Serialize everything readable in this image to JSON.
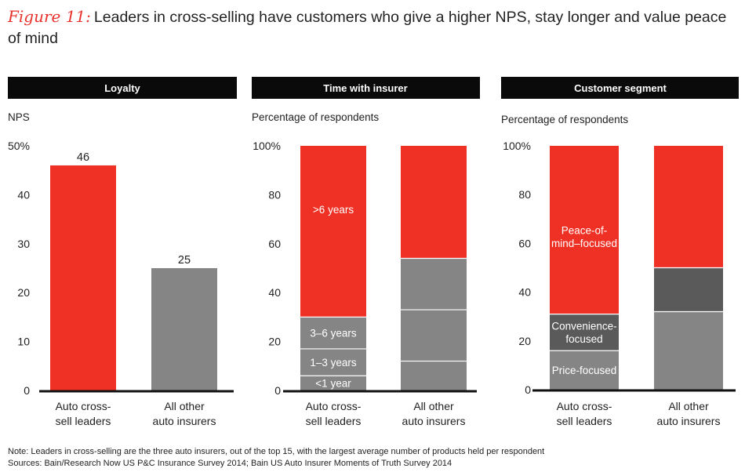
{
  "title": {
    "figure_label": "Figure 11:",
    "text": "Leaders in cross-selling have customers who give a higher NPS, stay longer and value peace of mind"
  },
  "colors": {
    "red": "#ee3124",
    "gray": "#858585",
    "dark_gray": "#5a5a5a",
    "header_bg": "#0a0a0a"
  },
  "chart_data": [
    {
      "type": "bar",
      "panel_title": "Loyalty",
      "ylabel": "NPS",
      "ylim": [
        0,
        50
      ],
      "yticks": [
        "0",
        "10",
        "20",
        "30",
        "40",
        "50%"
      ],
      "categories": [
        "Auto cross-sell leaders",
        "All other auto insurers"
      ],
      "category_lines": [
        [
          "Auto cross-",
          "sell leaders"
        ],
        [
          "All other",
          "auto insurers"
        ]
      ],
      "values": [
        46,
        25
      ],
      "data_labels": [
        "46",
        "25"
      ],
      "bar_colors": [
        "#ee3124",
        "#858585"
      ]
    },
    {
      "type": "bar",
      "stacked": true,
      "panel_title": "Time with insurer",
      "ylabel": "Percentage of respondents",
      "ylim": [
        0,
        100
      ],
      "yticks": [
        "0",
        "20",
        "40",
        "60",
        "80",
        "100%"
      ],
      "categories": [
        "Auto cross-sell leaders",
        "All other auto insurers"
      ],
      "category_lines": [
        [
          "Auto cross-",
          "sell leaders"
        ],
        [
          "All other",
          "auto insurers"
        ]
      ],
      "series": [
        {
          "name": "<1 year",
          "values": [
            6,
            12
          ],
          "color": "#858585"
        },
        {
          "name": "1–3 years",
          "values": [
            11,
            21
          ],
          "color": "#858585"
        },
        {
          "name": "3–6 years",
          "values": [
            13,
            21
          ],
          "color": "#858585"
        },
        {
          "name": ">6 years",
          "values": [
            70,
            46
          ],
          "color": "#ee3124"
        }
      ]
    },
    {
      "type": "bar",
      "stacked": true,
      "panel_title": "Customer segment",
      "ylabel": "Percentage of respondents",
      "ylim": [
        0,
        100
      ],
      "yticks": [
        "0",
        "20",
        "40",
        "60",
        "80",
        "100%"
      ],
      "categories": [
        "Auto cross-sell leaders",
        "All other auto insurers"
      ],
      "category_lines": [
        [
          "Auto cross-",
          "sell leaders"
        ],
        [
          "All other",
          "auto insurers"
        ]
      ],
      "series": [
        {
          "name": "Price-focused",
          "label_lines": [
            "Price-focused"
          ],
          "values": [
            16,
            32
          ],
          "color": "#858585"
        },
        {
          "name": "Convenience-focused",
          "label_lines": [
            "Convenience-",
            "focused"
          ],
          "values": [
            15,
            18
          ],
          "color": "#5a5a5a"
        },
        {
          "name": "Peace-of-mind–focused",
          "label_lines": [
            "Peace-of-",
            "mind–focused"
          ],
          "values": [
            69,
            50
          ],
          "color": "#ee3124"
        }
      ]
    }
  ],
  "notes": {
    "note": "Note: Leaders in cross-selling are the three auto insurers, out of the top 15, with the largest average number of products held per respondent",
    "sources": "Sources: Bain/Research Now US P&C Insurance Survey 2014; Bain US Auto Insurer Moments of Truth Survey 2014"
  }
}
